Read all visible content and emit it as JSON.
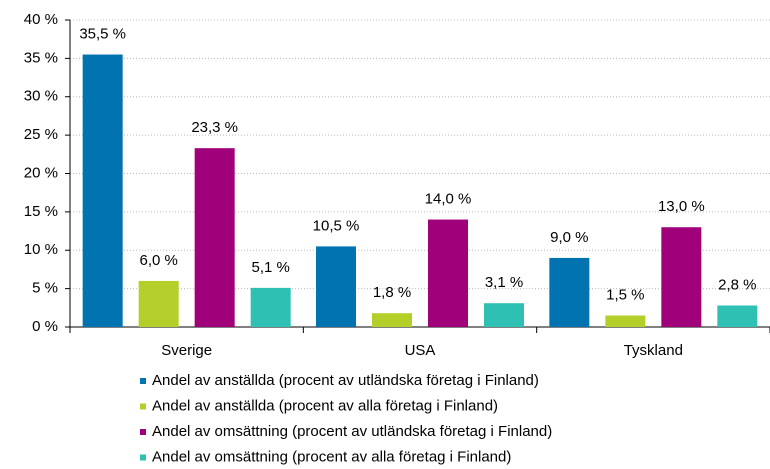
{
  "chart_data": {
    "type": "bar",
    "categories": [
      "Sverige",
      "USA",
      "Tyskland"
    ],
    "series": [
      {
        "name": "Andel av anställda (procent av utländska företag i Finland)",
        "color": "#0073b0",
        "values": [
          35.5,
          10.5,
          9.0
        ],
        "value_labels": [
          "35,5 %",
          "10,5 %",
          "9,0 %"
        ]
      },
      {
        "name": "Andel av anställda (procent av alla företag i Finland)",
        "color": "#b5cf2a",
        "values": [
          6.0,
          1.8,
          1.5
        ],
        "value_labels": [
          "6,0 %",
          "1,8 %",
          "1,5 %"
        ]
      },
      {
        "name": "Andel av omsättning (procent av utländska företag i Finland)",
        "color": "#a0007a",
        "values": [
          23.3,
          14.0,
          13.0
        ],
        "value_labels": [
          "23,3 %",
          "14,0 %",
          "13,0 %"
        ]
      },
      {
        "name": "Andel av omsättning (procent av alla företag i Finland)",
        "color": "#2fc0b4",
        "values": [
          5.1,
          3.1,
          2.8
        ],
        "value_labels": [
          "5,1 %",
          "3,1 %",
          "2,8 %"
        ]
      }
    ],
    "ylim": [
      0,
      40
    ],
    "yticks": [
      {
        "value": 0,
        "label": "0 %"
      },
      {
        "value": 5,
        "label": "5 %"
      },
      {
        "value": 10,
        "label": "10 %"
      },
      {
        "value": 15,
        "label": "15 %"
      },
      {
        "value": 20,
        "label": "20 %"
      },
      {
        "value": 25,
        "label": "25 %"
      },
      {
        "value": 30,
        "label": "30 %"
      },
      {
        "value": 35,
        "label": "35 %"
      },
      {
        "value": 40,
        "label": "40 %"
      }
    ],
    "grid": true
  }
}
